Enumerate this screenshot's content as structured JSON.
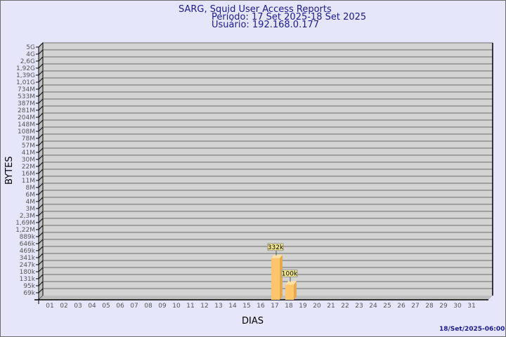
{
  "header": {
    "title": "SARG, Squid User Access Reports",
    "period": "Período: 17 Set 2025-18 Set 2025",
    "user": "Usuário: 192.168.0.177"
  },
  "footer": {
    "timestamp": "18/Set/2025-06:00"
  },
  "colors": {
    "background": "#e6e6fa",
    "plot_wall": "#d3d3d3",
    "bar": "#ffc66e",
    "text": "#1a1a8c"
  },
  "chart_data": {
    "type": "bar",
    "xlabel": "DIAS",
    "ylabel": "BYTES",
    "y_scale": "log",
    "grid": true,
    "y_tick_labels": [
      "5G",
      "4G",
      "2,6G",
      "1,92G",
      "1,39G",
      "1,01G",
      "734M",
      "533M",
      "387M",
      "281M",
      "204M",
      "148M",
      "108M",
      "78M",
      "57M",
      "41M",
      "30M",
      "22M",
      "16M",
      "11M",
      "8M",
      "6M",
      "4M",
      "3M",
      "2,3M",
      "1,69M",
      "1,22M",
      "889k",
      "646k",
      "469k",
      "341k",
      "247k",
      "180k",
      "131k",
      "95k",
      "69k"
    ],
    "y_tick_values": [
      5000000000.0,
      4000000000.0,
      2600000000.0,
      1920000000.0,
      1390000000.0,
      1010000000.0,
      734000000.0,
      533000000.0,
      387000000.0,
      281000000.0,
      204000000.0,
      148000000.0,
      108000000.0,
      78000000.0,
      57000000.0,
      41000000.0,
      30000000.0,
      22000000.0,
      16000000.0,
      11000000.0,
      8000000.0,
      6000000.0,
      4000000.0,
      3000000.0,
      2300000.0,
      1690000.0,
      1220000.0,
      889000.0,
      646000.0,
      469000.0,
      341000.0,
      247000.0,
      180000.0,
      131000.0,
      95000.0,
      69000.0
    ],
    "categories": [
      "01",
      "02",
      "03",
      "04",
      "05",
      "06",
      "07",
      "08",
      "09",
      "10",
      "11",
      "12",
      "13",
      "14",
      "15",
      "16",
      "17",
      "18",
      "19",
      "20",
      "21",
      "22",
      "23",
      "24",
      "25",
      "26",
      "27",
      "28",
      "29",
      "30",
      "31"
    ],
    "bars": [
      {
        "day": "17",
        "value": 332000,
        "label": "332k"
      },
      {
        "day": "18",
        "value": 100000,
        "label": "100k"
      }
    ]
  }
}
